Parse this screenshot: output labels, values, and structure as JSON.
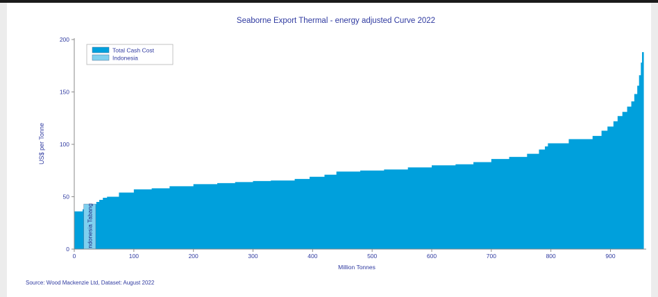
{
  "chart_data": {
    "type": "area",
    "title": "Seaborne Export Thermal - energy adjusted Curve 2022",
    "xlabel": "Million Tonnes",
    "ylabel": "US$ per Tonne",
    "xlim": [
      0,
      960
    ],
    "ylim": [
      0,
      200
    ],
    "x_ticks": [
      "0",
      "100",
      "200",
      "300",
      "400",
      "500",
      "600",
      "700",
      "800",
      "900"
    ],
    "x_tick_values": [
      0,
      100,
      200,
      300,
      400,
      500,
      600,
      700,
      800,
      900
    ],
    "y_ticks": [
      "0",
      "50",
      "100",
      "150",
      "200"
    ],
    "y_tick_values": [
      0,
      50,
      100,
      150,
      200
    ],
    "legend_position": "top-left",
    "series": [
      {
        "name": "Total Cash Cost",
        "color": "#00a0dc",
        "steps": [
          [
            0,
            36
          ],
          [
            14,
            38
          ],
          [
            18,
            43
          ],
          [
            37,
            45
          ],
          [
            42,
            47
          ],
          [
            48,
            49
          ],
          [
            55,
            50
          ],
          [
            75,
            54
          ],
          [
            100,
            57
          ],
          [
            130,
            58
          ],
          [
            160,
            60
          ],
          [
            200,
            62
          ],
          [
            240,
            63
          ],
          [
            270,
            64
          ],
          [
            300,
            65
          ],
          [
            330,
            65.5
          ],
          [
            370,
            67
          ],
          [
            395,
            69
          ],
          [
            420,
            71
          ],
          [
            440,
            74
          ],
          [
            480,
            75
          ],
          [
            520,
            76
          ],
          [
            560,
            78
          ],
          [
            600,
            80
          ],
          [
            640,
            81
          ],
          [
            670,
            83
          ],
          [
            700,
            86
          ],
          [
            730,
            88
          ],
          [
            760,
            91
          ],
          [
            780,
            95
          ],
          [
            790,
            98
          ],
          [
            795,
            101
          ],
          [
            830,
            105
          ],
          [
            870,
            108
          ],
          [
            885,
            113
          ],
          [
            895,
            117
          ],
          [
            905,
            122
          ],
          [
            912,
            127
          ],
          [
            920,
            131
          ],
          [
            928,
            136
          ],
          [
            935,
            141
          ],
          [
            940,
            148
          ],
          [
            945,
            156
          ],
          [
            948,
            166
          ],
          [
            951,
            178
          ],
          [
            953,
            188
          ],
          [
            956,
            188
          ]
        ]
      },
      {
        "name": "Indonesia",
        "color": "#7fd0ef",
        "x_start": 16,
        "x_end": 36,
        "value": 43
      }
    ],
    "annotations": [
      "Indonesia Tabang"
    ]
  },
  "source": "Source: Wood Mackenzie Ltd, Dataset: August 2022"
}
